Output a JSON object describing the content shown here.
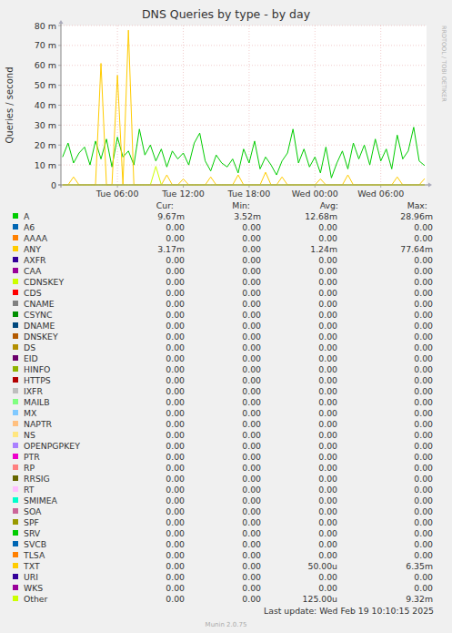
{
  "chart_data": {
    "type": "line",
    "title": "DNS Queries by type - by day",
    "y_label": "Queries / second",
    "side_text": "RRDTOOL / TOBI OETIKER",
    "last_update": "Last update: Wed Feb 19 10:10:15 2025",
    "footer": "Munin 2.0.75",
    "stat_headers": [
      "Cur:",
      "Min:",
      "Avg:",
      "Max:"
    ],
    "grid": true,
    "legend": "bottom",
    "xlim": [
      0.85,
      34.17
    ],
    "xticks": [
      {
        "value": 6,
        "label": "Tue 06:00"
      },
      {
        "value": 12,
        "label": "Tue 12:00"
      },
      {
        "value": 18,
        "label": "Tue 18:00"
      },
      {
        "value": 24,
        "label": "Wed 00:00"
      },
      {
        "value": 30,
        "label": "Wed 06:00"
      }
    ],
    "ylim": [
      0,
      80
    ],
    "yticks": [
      0,
      {
        "value": 10,
        "label": "10 m"
      },
      {
        "value": 20,
        "label": "20 m"
      },
      {
        "value": 30,
        "label": "30 m"
      },
      {
        "value": 40,
        "label": "40 m"
      },
      {
        "value": 50,
        "label": "50 m"
      },
      {
        "value": 60,
        "label": "60 m"
      },
      {
        "value": 70,
        "label": "70 m"
      },
      {
        "value": 80,
        "label": "80 m"
      }
    ],
    "x": [
      1,
      1.5,
      2,
      2.5,
      3,
      3.5,
      4,
      4.5,
      5,
      5.5,
      6,
      6.5,
      7,
      7.5,
      8,
      8.5,
      9,
      9.5,
      10,
      10.5,
      11,
      11.5,
      12,
      12.5,
      13,
      13.5,
      14,
      14.5,
      15,
      15.5,
      16,
      16.5,
      17,
      17.5,
      18,
      18.5,
      19,
      19.5,
      20,
      20.5,
      21,
      21.5,
      22,
      22.5,
      23,
      23.5,
      24,
      24.5,
      25,
      25.5,
      26,
      26.5,
      27,
      27.5,
      28,
      28.5,
      29,
      29.5,
      30,
      30.5,
      31,
      31.5,
      32,
      32.5,
      33,
      33.5,
      34
    ],
    "series": [
      {
        "name": "A",
        "color": "#00CC00",
        "stats": [
          "9.67m",
          "3.52m",
          "12.68m",
          "28.96m"
        ],
        "values": [
          14,
          21,
          11,
          16,
          19,
          10,
          22,
          13,
          23,
          9,
          24,
          14,
          17,
          10,
          28,
          15,
          20,
          12,
          18,
          9,
          17,
          13,
          16,
          10,
          21,
          26,
          12,
          7,
          15,
          11,
          9,
          13,
          6,
          18,
          11,
          22,
          8,
          14,
          10,
          5,
          12,
          16,
          28,
          11,
          18,
          9,
          14,
          6,
          19,
          3.52,
          11,
          17,
          8,
          21,
          13,
          20,
          10,
          23,
          12,
          18,
          8,
          25,
          13,
          17,
          28.96,
          12,
          9.67
        ]
      },
      {
        "name": "A6",
        "color": "#0066B3",
        "stats": [
          "0.00",
          "0.00",
          "0.00",
          "0.00"
        ]
      },
      {
        "name": "AAAA",
        "color": "#FF8000",
        "stats": [
          "0.00",
          "0.00",
          "0.00",
          "0.00"
        ]
      },
      {
        "name": "ANY",
        "color": "#FFCC00",
        "stats": [
          "3.17m",
          "0.00",
          "1.24m",
          "77.64m"
        ],
        "values": [
          0,
          0,
          4,
          0,
          0,
          0,
          0,
          61,
          0,
          0,
          55,
          0,
          77.64,
          0,
          0,
          0,
          0,
          0,
          0,
          5,
          0,
          0,
          3,
          0,
          0,
          0,
          0,
          4,
          0,
          0,
          0,
          0,
          5,
          0,
          0,
          0,
          0,
          0,
          0,
          0,
          4,
          0,
          0,
          0,
          0,
          0,
          0,
          3,
          0,
          0,
          0,
          0,
          5,
          0,
          0,
          0,
          0,
          0,
          0,
          0,
          0,
          4,
          0,
          0,
          0,
          0,
          3.17
        ]
      },
      {
        "name": "AXFR",
        "color": "#330099",
        "stats": [
          "0.00",
          "0.00",
          "0.00",
          "0.00"
        ]
      },
      {
        "name": "CAA",
        "color": "#990099",
        "stats": [
          "0.00",
          "0.00",
          "0.00",
          "0.00"
        ]
      },
      {
        "name": "CDNSKEY",
        "color": "#CCFF00",
        "stats": [
          "0.00",
          "0.00",
          "0.00",
          "0.00"
        ]
      },
      {
        "name": "CDS",
        "color": "#FF0000",
        "stats": [
          "0.00",
          "0.00",
          "0.00",
          "0.00"
        ]
      },
      {
        "name": "CNAME",
        "color": "#808080",
        "stats": [
          "0.00",
          "0.00",
          "0.00",
          "0.00"
        ]
      },
      {
        "name": "CSYNC",
        "color": "#008F00",
        "stats": [
          "0.00",
          "0.00",
          "0.00",
          "0.00"
        ]
      },
      {
        "name": "DNAME",
        "color": "#00487D",
        "stats": [
          "0.00",
          "0.00",
          "0.00",
          "0.00"
        ]
      },
      {
        "name": "DNSKEY",
        "color": "#B35A00",
        "stats": [
          "0.00",
          "0.00",
          "0.00",
          "0.00"
        ]
      },
      {
        "name": "DS",
        "color": "#B38F00",
        "stats": [
          "0.00",
          "0.00",
          "0.00",
          "0.00"
        ]
      },
      {
        "name": "EID",
        "color": "#6B006B",
        "stats": [
          "0.00",
          "0.00",
          "0.00",
          "0.00"
        ]
      },
      {
        "name": "HINFO",
        "color": "#8FB300",
        "stats": [
          "0.00",
          "0.00",
          "0.00",
          "0.00"
        ]
      },
      {
        "name": "HTTPS",
        "color": "#B30000",
        "stats": [
          "0.00",
          "0.00",
          "0.00",
          "0.00"
        ]
      },
      {
        "name": "IXFR",
        "color": "#BEBEBE",
        "stats": [
          "0.00",
          "0.00",
          "0.00",
          "0.00"
        ]
      },
      {
        "name": "MAILB",
        "color": "#80FF80",
        "stats": [
          "0.00",
          "0.00",
          "0.00",
          "0.00"
        ]
      },
      {
        "name": "MX",
        "color": "#80C9FF",
        "stats": [
          "0.00",
          "0.00",
          "0.00",
          "0.00"
        ]
      },
      {
        "name": "NAPTR",
        "color": "#FFC080",
        "stats": [
          "0.00",
          "0.00",
          "0.00",
          "0.00"
        ]
      },
      {
        "name": "NS",
        "color": "#FFE680",
        "stats": [
          "0.00",
          "0.00",
          "0.00",
          "0.00"
        ]
      },
      {
        "name": "OPENPGPKEY",
        "color": "#AA80FF",
        "stats": [
          "0.00",
          "0.00",
          "0.00",
          "0.00"
        ]
      },
      {
        "name": "PTR",
        "color": "#EE00CC",
        "stats": [
          "0.00",
          "0.00",
          "0.00",
          "0.00"
        ]
      },
      {
        "name": "RP",
        "color": "#FF8080",
        "stats": [
          "0.00",
          "0.00",
          "0.00",
          "0.00"
        ]
      },
      {
        "name": "RRSIG",
        "color": "#666600",
        "stats": [
          "0.00",
          "0.00",
          "0.00",
          "0.00"
        ]
      },
      {
        "name": "RT",
        "color": "#FFBFFF",
        "stats": [
          "0.00",
          "0.00",
          "0.00",
          "0.00"
        ]
      },
      {
        "name": "SMIMEA",
        "color": "#00FFCC",
        "stats": [
          "0.00",
          "0.00",
          "0.00",
          "0.00"
        ]
      },
      {
        "name": "SOA",
        "color": "#CC6699",
        "stats": [
          "0.00",
          "0.00",
          "0.00",
          "0.00"
        ]
      },
      {
        "name": "SPF",
        "color": "#999900",
        "stats": [
          "0.00",
          "0.00",
          "0.00",
          "0.00"
        ]
      },
      {
        "name": "SRV",
        "color": "#00CC00",
        "stats": [
          "0.00",
          "0.00",
          "0.00",
          "0.00"
        ]
      },
      {
        "name": "SVCB",
        "color": "#0066B3",
        "stats": [
          "0.00",
          "0.00",
          "0.00",
          "0.00"
        ]
      },
      {
        "name": "TLSA",
        "color": "#FF8000",
        "stats": [
          "0.00",
          "0.00",
          "0.00",
          "0.00"
        ]
      },
      {
        "name": "TXT",
        "color": "#FFCC00",
        "stats": [
          "0.00",
          "0.00",
          "50.00u",
          "6.35m"
        ],
        "values": [
          0,
          0,
          0,
          0,
          0,
          0,
          0,
          0,
          0,
          0,
          0,
          0,
          0,
          0,
          0,
          0,
          0,
          0,
          0,
          0,
          0,
          0,
          0,
          0,
          0,
          0,
          0,
          0,
          0,
          0,
          0,
          0,
          0,
          0,
          0,
          0,
          0,
          6.35,
          0,
          0,
          0,
          0,
          0,
          0,
          0,
          0,
          0,
          0,
          0,
          0,
          0,
          0,
          0,
          0,
          0,
          0,
          0,
          0,
          0,
          0,
          0,
          0,
          0,
          0,
          0,
          0,
          0
        ]
      },
      {
        "name": "URI",
        "color": "#330099",
        "stats": [
          "0.00",
          "0.00",
          "0.00",
          "0.00"
        ]
      },
      {
        "name": "WKS",
        "color": "#990099",
        "stats": [
          "0.00",
          "0.00",
          "0.00",
          "0.00"
        ]
      },
      {
        "name": "Other",
        "color": "#CCFF00",
        "stats": [
          "0.00",
          "0.00",
          "125.00u",
          "9.32m"
        ],
        "values": [
          0,
          0,
          0,
          0,
          0,
          0,
          0,
          0,
          0,
          0,
          0,
          0,
          0,
          0,
          0,
          0,
          0,
          9.32,
          0,
          0,
          0,
          0,
          0,
          0,
          0,
          0,
          0,
          0,
          0,
          0,
          0,
          0,
          0,
          0,
          0,
          0,
          0,
          0,
          0,
          0,
          0,
          0,
          0,
          0,
          0,
          0,
          0,
          0,
          0,
          0,
          0,
          0,
          0,
          0,
          0,
          0,
          0,
          0,
          0,
          0,
          0,
          0,
          0,
          0,
          0,
          0,
          0
        ]
      }
    ]
  }
}
